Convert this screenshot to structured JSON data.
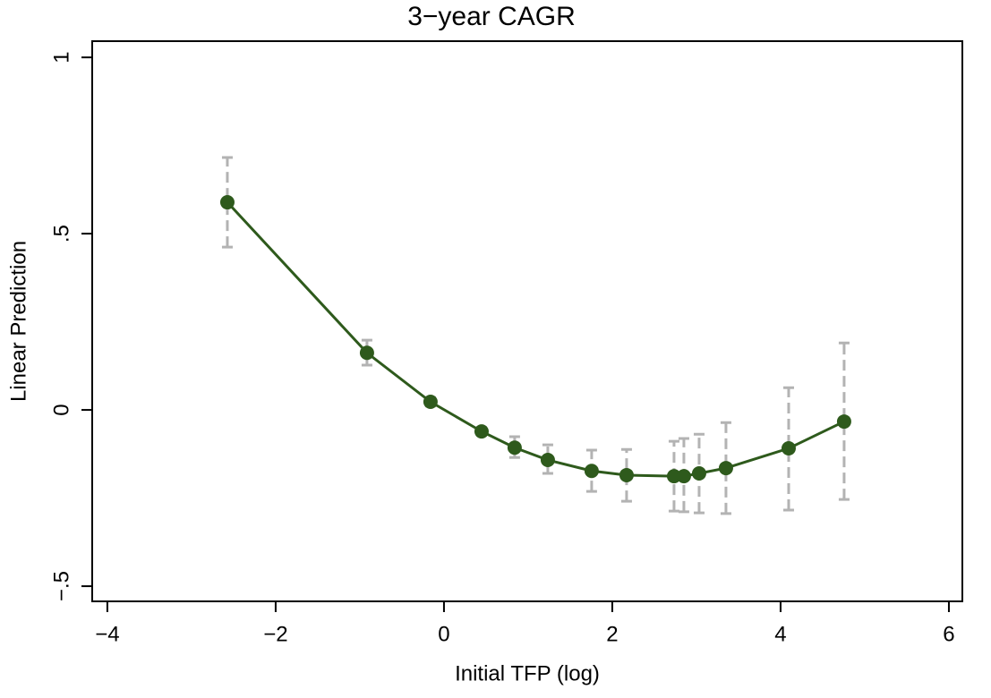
{
  "chart_data": {
    "type": "line",
    "title": "3−year CAGR",
    "x_label": "Initial TFP (log)",
    "y_label": "Linear Prediction",
    "x": [
      -2.574,
      -0.915,
      -0.16,
      0.447,
      0.84,
      1.234,
      1.755,
      2.17,
      2.734,
      2.851,
      3.032,
      3.351,
      4.096,
      4.755
    ],
    "series": [
      {
        "color": "#2e5a1c",
        "values": [
          0.589,
          0.162,
          0.023,
          -0.061,
          -0.107,
          -0.142,
          -0.173,
          -0.185,
          -0.188,
          -0.188,
          -0.18,
          -0.165,
          -0.109,
          -0.033
        ],
        "lower": [
          0.462,
          0.127,
          0.011,
          -0.072,
          -0.135,
          -0.18,
          -0.231,
          -0.259,
          -0.287,
          -0.289,
          -0.292,
          -0.294,
          -0.284,
          -0.254
        ],
        "upper": [
          0.716,
          0.198,
          0.035,
          -0.05,
          -0.076,
          -0.099,
          -0.114,
          -0.112,
          -0.089,
          -0.081,
          -0.069,
          -0.036,
          0.063,
          0.19
        ]
      }
    ],
    "ci_color": "#b3b3b3",
    "xlim": [
      -4.18,
      6.16
    ],
    "ylim": [
      -0.543,
      1.046
    ],
    "xticks": [
      {
        "value": -4,
        "label": "−4"
      },
      {
        "value": -2,
        "label": "−2"
      },
      0,
      2,
      4,
      6
    ],
    "yticks": [
      {
        "value": -0.5,
        "label": "−.5"
      },
      0,
      {
        "value": 0.5,
        "label": ".5"
      },
      1
    ]
  }
}
